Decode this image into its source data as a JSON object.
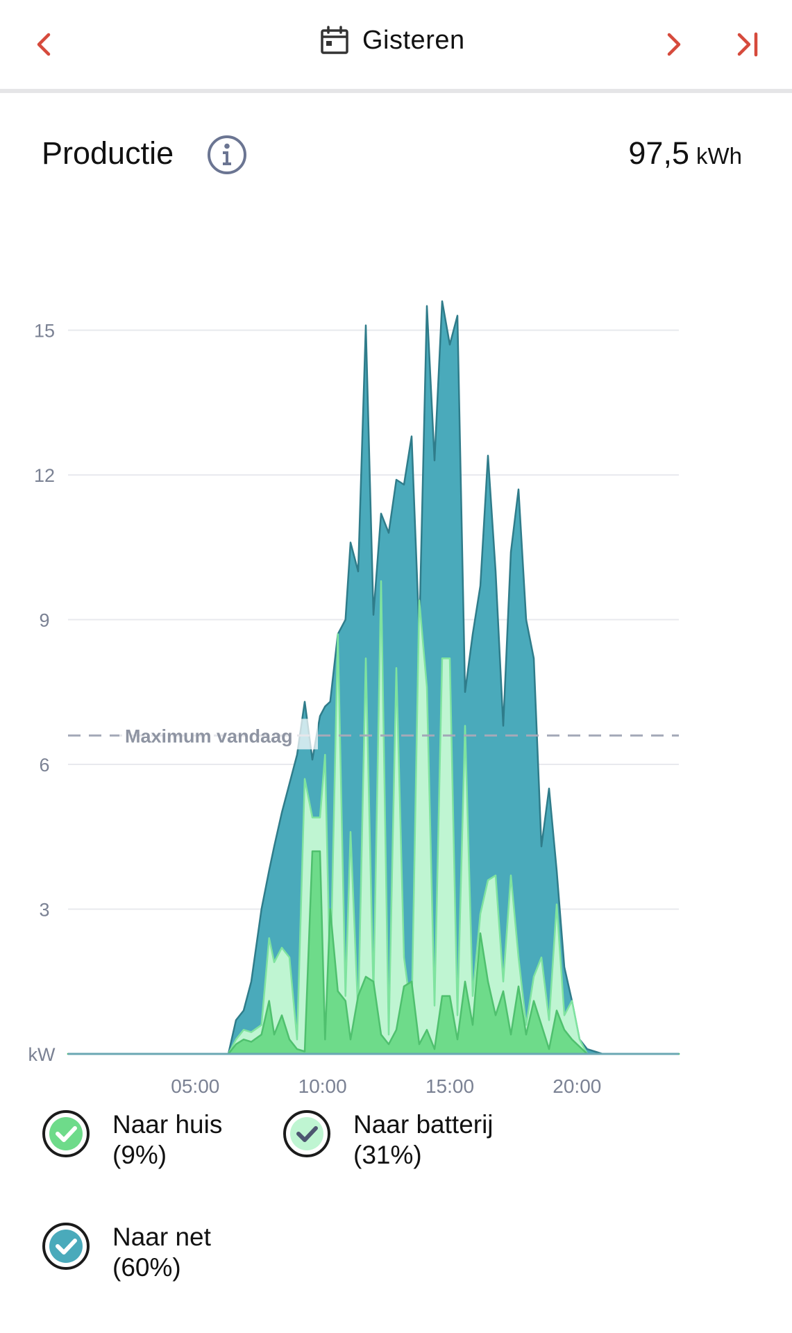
{
  "header": {
    "title": "Gisteren",
    "accent_color": "#d64a3c"
  },
  "production": {
    "label": "Productie",
    "value": "97,5",
    "unit": "kWh"
  },
  "chart": {
    "max_label": "Maximum vandaag",
    "unit_label": "kW"
  },
  "legend": [
    {
      "label": "Naar huis",
      "percent": "(9%)",
      "color": "#6edb8a"
    },
    {
      "label": "Naar batterij",
      "percent": "(31%)",
      "color": "#bff5d2"
    },
    {
      "label": "Naar net",
      "percent": "(60%)",
      "color": "#4aaabb"
    }
  ],
  "chart_data": {
    "type": "area",
    "x_ticks": [
      "05:00",
      "10:00",
      "15:00",
      "20:00"
    ],
    "y_ticks": [
      3,
      6,
      9,
      12,
      15
    ],
    "ylim": [
      0,
      15.8
    ],
    "x_range_hours": [
      0,
      24
    ],
    "grid": true,
    "max_today_kw": 6.6,
    "series": [
      {
        "name": "Naar huis",
        "color": "#6edb8a",
        "points": [
          [
            0,
            0
          ],
          [
            6.3,
            0
          ],
          [
            6.6,
            0.2
          ],
          [
            6.9,
            0.3
          ],
          [
            7.2,
            0.25
          ],
          [
            7.6,
            0.4
          ],
          [
            7.9,
            1.1
          ],
          [
            8.1,
            0.4
          ],
          [
            8.4,
            0.8
          ],
          [
            8.7,
            0.3
          ],
          [
            9.0,
            0.1
          ],
          [
            9.3,
            0.05
          ],
          [
            9.6,
            4.2
          ],
          [
            9.9,
            4.2
          ],
          [
            10.1,
            0.3
          ],
          [
            10.3,
            3.0
          ],
          [
            10.6,
            1.3
          ],
          [
            10.9,
            1.1
          ],
          [
            11.1,
            0.3
          ],
          [
            11.4,
            1.2
          ],
          [
            11.7,
            1.6
          ],
          [
            12.0,
            1.5
          ],
          [
            12.3,
            0.4
          ],
          [
            12.6,
            0.2
          ],
          [
            12.9,
            0.5
          ],
          [
            13.2,
            1.4
          ],
          [
            13.5,
            1.5
          ],
          [
            13.8,
            0.2
          ],
          [
            14.1,
            0.5
          ],
          [
            14.4,
            0.1
          ],
          [
            14.7,
            1.2
          ],
          [
            15.0,
            1.2
          ],
          [
            15.3,
            0.3
          ],
          [
            15.6,
            1.5
          ],
          [
            15.9,
            0.6
          ],
          [
            16.2,
            2.5
          ],
          [
            16.5,
            1.5
          ],
          [
            16.8,
            0.8
          ],
          [
            17.1,
            1.3
          ],
          [
            17.4,
            0.4
          ],
          [
            17.7,
            1.4
          ],
          [
            18.0,
            0.4
          ],
          [
            18.3,
            1.1
          ],
          [
            18.6,
            0.6
          ],
          [
            18.9,
            0.1
          ],
          [
            19.2,
            0.9
          ],
          [
            19.5,
            0.5
          ],
          [
            19.8,
            0.3
          ],
          [
            20.1,
            0.15
          ],
          [
            20.4,
            0
          ],
          [
            24,
            0
          ]
        ]
      },
      {
        "name": "Naar batterij",
        "color": "#bff5d2",
        "points": [
          [
            0,
            0
          ],
          [
            6.3,
            0
          ],
          [
            6.6,
            0.3
          ],
          [
            6.9,
            0.5
          ],
          [
            7.2,
            0.45
          ],
          [
            7.6,
            0.6
          ],
          [
            7.9,
            2.4
          ],
          [
            8.1,
            1.9
          ],
          [
            8.4,
            2.2
          ],
          [
            8.7,
            2.0
          ],
          [
            9.0,
            0.3
          ],
          [
            9.3,
            5.7
          ],
          [
            9.6,
            4.9
          ],
          [
            9.9,
            4.9
          ],
          [
            10.1,
            6.2
          ],
          [
            10.3,
            1.4
          ],
          [
            10.6,
            8.7
          ],
          [
            10.9,
            1.2
          ],
          [
            11.1,
            4.6
          ],
          [
            11.4,
            0.8
          ],
          [
            11.7,
            8.2
          ],
          [
            12.0,
            1.2
          ],
          [
            12.3,
            9.8
          ],
          [
            12.6,
            0.4
          ],
          [
            12.9,
            8.0
          ],
          [
            13.2,
            2.0
          ],
          [
            13.5,
            0.8
          ],
          [
            13.8,
            9.4
          ],
          [
            14.1,
            7.6
          ],
          [
            14.4,
            1.0
          ],
          [
            14.7,
            8.2
          ],
          [
            15.0,
            8.2
          ],
          [
            15.3,
            0.8
          ],
          [
            15.6,
            6.8
          ],
          [
            15.9,
            1.2
          ],
          [
            16.2,
            2.9
          ],
          [
            16.5,
            3.6
          ],
          [
            16.8,
            3.7
          ],
          [
            17.1,
            1.5
          ],
          [
            17.4,
            3.7
          ],
          [
            17.7,
            2.0
          ],
          [
            18.0,
            0.6
          ],
          [
            18.3,
            1.6
          ],
          [
            18.6,
            2.0
          ],
          [
            18.9,
            0.7
          ],
          [
            19.2,
            3.1
          ],
          [
            19.5,
            0.8
          ],
          [
            19.8,
            1.1
          ],
          [
            20.1,
            0.3
          ],
          [
            20.4,
            0
          ],
          [
            24,
            0
          ]
        ]
      },
      {
        "name": "Naar net",
        "color": "#4aaabb",
        "points": [
          [
            0,
            0
          ],
          [
            6.3,
            0
          ],
          [
            6.6,
            0.7
          ],
          [
            6.9,
            0.9
          ],
          [
            7.2,
            1.5
          ],
          [
            7.6,
            3.0
          ],
          [
            7.9,
            3.8
          ],
          [
            8.1,
            4.3
          ],
          [
            8.4,
            5.0
          ],
          [
            8.7,
            5.6
          ],
          [
            9.0,
            6.2
          ],
          [
            9.3,
            7.3
          ],
          [
            9.6,
            6.1
          ],
          [
            9.9,
            7.0
          ],
          [
            10.1,
            7.2
          ],
          [
            10.3,
            7.3
          ],
          [
            10.6,
            8.7
          ],
          [
            10.9,
            9.0
          ],
          [
            11.1,
            10.6
          ],
          [
            11.4,
            10.0
          ],
          [
            11.7,
            15.1
          ],
          [
            12.0,
            9.1
          ],
          [
            12.3,
            11.2
          ],
          [
            12.6,
            10.8
          ],
          [
            12.9,
            11.9
          ],
          [
            13.2,
            11.8
          ],
          [
            13.5,
            12.8
          ],
          [
            13.8,
            8.7
          ],
          [
            14.1,
            15.5
          ],
          [
            14.4,
            12.3
          ],
          [
            14.7,
            15.6
          ],
          [
            15.0,
            14.7
          ],
          [
            15.3,
            15.3
          ],
          [
            15.6,
            7.5
          ],
          [
            15.9,
            8.7
          ],
          [
            16.2,
            9.7
          ],
          [
            16.5,
            12.4
          ],
          [
            16.8,
            10.0
          ],
          [
            17.1,
            6.8
          ],
          [
            17.4,
            10.4
          ],
          [
            17.7,
            11.7
          ],
          [
            18.0,
            9.0
          ],
          [
            18.3,
            8.2
          ],
          [
            18.6,
            4.3
          ],
          [
            18.9,
            5.5
          ],
          [
            19.2,
            3.8
          ],
          [
            19.5,
            1.8
          ],
          [
            19.8,
            1.1
          ],
          [
            20.1,
            0.3
          ],
          [
            20.4,
            0.1
          ],
          [
            21,
            0
          ],
          [
            24,
            0
          ]
        ]
      }
    ]
  }
}
